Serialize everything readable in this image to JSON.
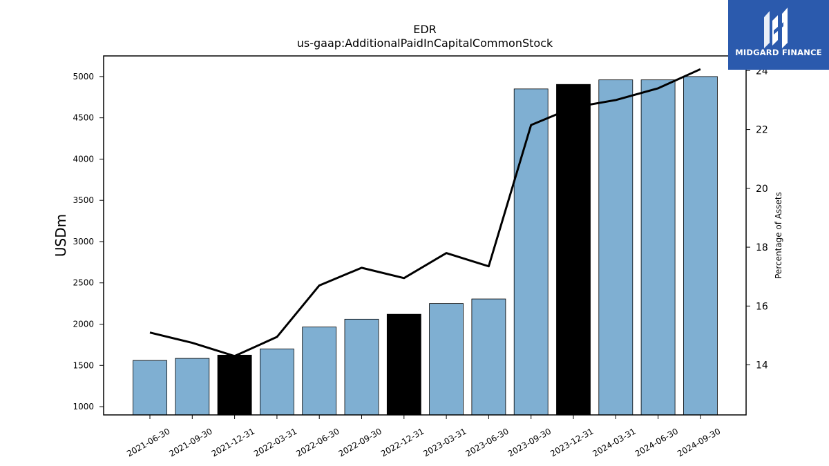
{
  "logo": {
    "brand_text": "MIDGARD FINANCE",
    "color": "#2b5aad"
  },
  "chart_data": {
    "type": "bar",
    "title": "EDR",
    "subtitle": "us-gaap:AdditionalPaidInCapitalCommonStock",
    "ylabel": "USDm",
    "ylabel_right": "Percentage of Assets",
    "categories": [
      "2021-06-30",
      "2021-09-30",
      "2021-12-31",
      "2022-03-31",
      "2022-06-30",
      "2022-09-30",
      "2022-12-31",
      "2023-03-31",
      "2023-06-30",
      "2023-09-30",
      "2023-12-31",
      "2024-03-31",
      "2024-06-30",
      "2024-09-30"
    ],
    "series": [
      {
        "values": [
          1560,
          1585,
          1625,
          1700,
          1965,
          2060,
          2120,
          2250,
          2305,
          4850,
          4905,
          4960,
          4960,
          5000
        ],
        "highlight": [
          false,
          false,
          true,
          false,
          false,
          false,
          true,
          false,
          false,
          false,
          true,
          false,
          false,
          false
        ]
      },
      {
        "axis": "right",
        "values": [
          15.1,
          14.75,
          14.3,
          14.95,
          16.7,
          17.3,
          16.95,
          17.8,
          17.35,
          22.15,
          22.75,
          23.0,
          23.4,
          24.05
        ]
      }
    ],
    "ylim": [
      900,
      5250
    ],
    "ylim_right": [
      12.3,
      24.5
    ],
    "yticks": [
      "1000",
      "1500",
      "2000",
      "2500",
      "3000",
      "3500",
      "4000",
      "4500",
      "5000"
    ],
    "yticks_right": [
      "14",
      "16",
      "18",
      "20",
      "22",
      "24"
    ],
    "colors": {
      "bar": "#7fafd2",
      "bar_highlight": "#000000",
      "line": "#000000"
    },
    "grid": false,
    "legend": "none"
  }
}
